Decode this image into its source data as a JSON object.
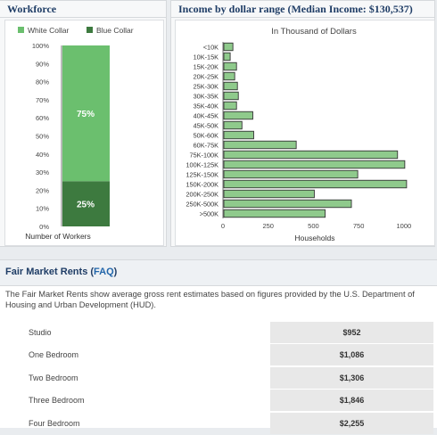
{
  "workforce": {
    "title": "Workforce",
    "legend": [
      {
        "label": "White Collar",
        "color": "#6bbf6e"
      },
      {
        "label": "Blue Collar",
        "color": "#3d7a3f"
      }
    ],
    "yticks": [
      "100%",
      "90%",
      "80%",
      "70%",
      "60%",
      "50%",
      "40%",
      "30%",
      "20%",
      "10%",
      "0%"
    ],
    "xlabel": "Number of Workers"
  },
  "income": {
    "title": "Income by dollar range (Median Income: $130,537)",
    "subtitle": "In Thousand of Dollars",
    "xlabel": "Households",
    "xticks": [
      "0",
      "250",
      "500",
      "750",
      "1000"
    ]
  },
  "chart_data": [
    {
      "type": "bar",
      "stacked": true,
      "categories": [
        "Number of Workers"
      ],
      "series": [
        {
          "name": "White Collar",
          "values": [
            75
          ],
          "label": "75%",
          "color": "#6bbf6e"
        },
        {
          "name": "Blue Collar",
          "values": [
            25
          ],
          "label": "25%",
          "color": "#3d7a3f"
        }
      ],
      "title": "Workforce",
      "xlabel": "Number of Workers",
      "ylim": [
        0,
        100
      ],
      "grid": false,
      "legend": "top"
    },
    {
      "type": "bar",
      "orientation": "horizontal",
      "categories": [
        "<10K",
        "10K-15K",
        "15K-20K",
        "20K-25K",
        "25K-30K",
        "30K-35K",
        "35K-40K",
        "40K-45K",
        "45K-50K",
        "50K-60K",
        "60K-75K",
        "75K-100K",
        "100K-125K",
        "125K-150K",
        "150K-200K",
        "200K-250K",
        "250K-500K",
        ">500K"
      ],
      "values": [
        50,
        35,
        70,
        60,
        75,
        80,
        70,
        160,
        100,
        165,
        400,
        960,
        1000,
        740,
        1010,
        500,
        705,
        560
      ],
      "title": "Income by dollar range (Median Income: $130,537)",
      "subtitle": "In Thousand of Dollars",
      "xlabel": "Households",
      "xlim": [
        0,
        1050
      ],
      "color": "#8fca8c",
      "grid": false
    }
  ],
  "fmr": {
    "title": "Fair Market Rents",
    "faq_prefix": " (",
    "faq": "FAQ",
    "faq_suffix": ")",
    "description": "The Fair Market Rents show average gross rent estimates based on figures provided by the U.S. Department of Housing and Urban Development (HUD).",
    "rows": [
      {
        "label": "Studio",
        "value": "$952"
      },
      {
        "label": "One Bedroom",
        "value": "$1,086"
      },
      {
        "label": "Two Bedroom",
        "value": "$1,306"
      },
      {
        "label": "Three Bedroom",
        "value": "$1,846"
      },
      {
        "label": "Four Bedroom",
        "value": "$2,255"
      }
    ]
  }
}
